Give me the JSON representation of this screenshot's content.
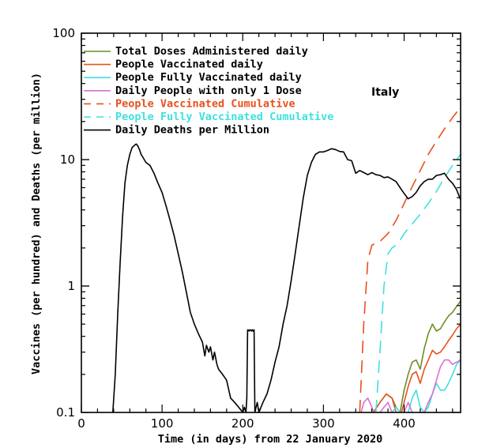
{
  "chart_data": {
    "type": "line",
    "title": "",
    "annotation": "Italy",
    "xlabel": "Time (in days) from 22 January 2020",
    "ylabel": "Vaccines (per hundred) and Deaths (per million)",
    "xlim": [
      0,
      470
    ],
    "ylim": [
      0.1,
      100
    ],
    "yscale": "log",
    "x_ticks": [
      0,
      100,
      200,
      300,
      400
    ],
    "x_tick_labels": [
      "0",
      "100",
      "200",
      "300",
      "400"
    ],
    "y_ticks": [
      0.1,
      1,
      10,
      100
    ],
    "y_tick_labels": [
      "0.1",
      "1",
      "10",
      "100"
    ],
    "series": [
      {
        "name": "Total Doses Administered daily",
        "color": "#6b8e23",
        "dash": "solid",
        "x": [
          345,
          355,
          362,
          370,
          378,
          385,
          390,
          395,
          400,
          405,
          410,
          415,
          420,
          425,
          430,
          435,
          440,
          445,
          450,
          455,
          460,
          465,
          470
        ],
        "y": [
          0.09,
          0.095,
          0.1,
          0.12,
          0.14,
          0.13,
          0.11,
          0.1,
          0.15,
          0.2,
          0.25,
          0.26,
          0.22,
          0.32,
          0.42,
          0.5,
          0.44,
          0.46,
          0.52,
          0.58,
          0.62,
          0.69,
          0.76
        ]
      },
      {
        "name": "People Vaccinated daily",
        "color": "#e8501e",
        "dash": "solid",
        "x": [
          345,
          355,
          362,
          370,
          378,
          385,
          390,
          395,
          400,
          405,
          410,
          415,
          420,
          425,
          430,
          435,
          440,
          445,
          450,
          455,
          460,
          465,
          470
        ],
        "y": [
          0.09,
          0.095,
          0.1,
          0.12,
          0.14,
          0.13,
          0.1,
          0.09,
          0.12,
          0.16,
          0.2,
          0.21,
          0.17,
          0.22,
          0.26,
          0.31,
          0.29,
          0.3,
          0.33,
          0.37,
          0.41,
          0.46,
          0.5
        ]
      },
      {
        "name": "People Fully Vaccinated daily",
        "color": "#40e0e0",
        "dash": "solid",
        "x": [
          380,
          385,
          390,
          395,
          400,
          405,
          410,
          415,
          420,
          425,
          430,
          435,
          440,
          445,
          450,
          455,
          460,
          465,
          470
        ],
        "y": [
          0.09,
          0.1,
          0.11,
          0.1,
          0.09,
          0.1,
          0.13,
          0.15,
          0.11,
          0.1,
          0.11,
          0.14,
          0.17,
          0.15,
          0.15,
          0.17,
          0.2,
          0.24,
          0.26
        ]
      },
      {
        "name": "Daily People with only 1 Dose",
        "color": "#da70d6",
        "dash": "solid",
        "x": [
          345,
          350,
          355,
          360,
          365,
          370,
          375,
          380,
          385,
          390,
          395,
          400,
          405,
          410,
          415,
          420,
          425,
          430,
          435,
          440,
          445,
          450,
          455,
          460,
          465,
          470
        ],
        "y": [
          0.09,
          0.12,
          0.13,
          0.11,
          0.09,
          0.1,
          0.11,
          0.12,
          0.1,
          0.09,
          0.08,
          0.1,
          0.12,
          0.1,
          0.09,
          0.08,
          0.1,
          0.12,
          0.14,
          0.18,
          0.23,
          0.26,
          0.26,
          0.24,
          0.25,
          0.26
        ]
      },
      {
        "name": "People Vaccinated Cumulative",
        "color": "#e8501e",
        "dash": "dashed",
        "x": [
          345,
          350,
          355,
          360,
          365,
          370,
          380,
          390,
          400,
          410,
          420,
          430,
          440,
          450,
          460,
          470
        ],
        "y": [
          0.1,
          0.5,
          1.6,
          2.1,
          2.2,
          2.25,
          2.6,
          3.3,
          4.5,
          6.1,
          8.2,
          11,
          14,
          17.5,
          21.5,
          26
        ]
      },
      {
        "name": "People Fully Vaccinated Cumulative",
        "color": "#40e0e0",
        "dash": "dashed",
        "x": [
          365,
          370,
          375,
          380,
          385,
          390,
          395,
          400,
          410,
          420,
          430,
          440,
          450,
          460,
          470
        ],
        "y": [
          0.1,
          0.3,
          1.0,
          1.8,
          2.0,
          2.1,
          2.3,
          2.6,
          3.1,
          3.7,
          4.5,
          5.6,
          7.2,
          9.0,
          11
        ]
      },
      {
        "name": "Daily Deaths per Million",
        "color": "#000000",
        "dash": "solid",
        "x": [
          39,
          42,
          45,
          48,
          51,
          54,
          57,
          60,
          63,
          66,
          68,
          70,
          72,
          74,
          76,
          80,
          85,
          90,
          95,
          100,
          105,
          110,
          115,
          120,
          125,
          130,
          135,
          140,
          145,
          150,
          153,
          155,
          158,
          160,
          163,
          165,
          168,
          170,
          175,
          180,
          185,
          190,
          195,
          200,
          202,
          204,
          205,
          206,
          207,
          208,
          209,
          210,
          211,
          212,
          213,
          214,
          215,
          218,
          220,
          225,
          230,
          235,
          240,
          245,
          250,
          255,
          260,
          265,
          270,
          275,
          280,
          285,
          290,
          295,
          300,
          305,
          310,
          315,
          320,
          325,
          330,
          335,
          340,
          345,
          350,
          355,
          360,
          365,
          370,
          375,
          380,
          385,
          390,
          395,
          400,
          405,
          410,
          415,
          420,
          425,
          430,
          435,
          440,
          445,
          450,
          455,
          460,
          465,
          470
        ],
        "y": [
          0.1,
          0.2,
          0.6,
          1.5,
          3.5,
          6.5,
          9,
          11,
          12.5,
          13,
          13.3,
          12.8,
          12,
          11,
          10.5,
          9.5,
          9,
          7.8,
          6.5,
          5.5,
          4.3,
          3.3,
          2.5,
          1.8,
          1.3,
          0.9,
          0.62,
          0.5,
          0.42,
          0.36,
          0.28,
          0.34,
          0.3,
          0.33,
          0.26,
          0.3,
          0.24,
          0.22,
          0.2,
          0.18,
          0.13,
          0.12,
          0.11,
          0.1,
          0.11,
          0.1,
          0.13,
          0.45,
          0.45,
          0.44,
          0.45,
          0.45,
          0.44,
          0.45,
          0.44,
          0.45,
          0.1,
          0.12,
          0.1,
          0.12,
          0.14,
          0.18,
          0.25,
          0.33,
          0.5,
          0.7,
          1.1,
          1.8,
          3.0,
          5.0,
          7.5,
          9.5,
          11,
          11.5,
          11.5,
          11.8,
          12.2,
          12,
          11.6,
          11.5,
          10,
          9.8,
          7.8,
          8.2,
          7.9,
          7.6,
          7.9,
          7.6,
          7.5,
          7.2,
          7.3,
          7.0,
          6.7,
          6.0,
          5.4,
          4.9,
          5.1,
          5.5,
          6.2,
          6.7,
          7.0,
          7.0,
          7.5,
          7.6,
          7.8,
          7.0,
          6.5,
          5.8,
          4.8
        ]
      }
    ],
    "legend": {
      "placement": "top-left",
      "entries": [
        {
          "label": "Total Doses Administered daily",
          "color": "#6b8e23",
          "dash": "solid",
          "text_color": "#000000"
        },
        {
          "label": "People Vaccinated daily",
          "color": "#e8501e",
          "dash": "solid",
          "text_color": "#000000"
        },
        {
          "label": "People Fully Vaccinated daily",
          "color": "#40e0e0",
          "dash": "solid",
          "text_color": "#000000"
        },
        {
          "label": "Daily People with only 1 Dose",
          "color": "#da70d6",
          "dash": "solid",
          "text_color": "#000000"
        },
        {
          "label": "People Vaccinated Cumulative",
          "color": "#e8501e",
          "dash": "dashed",
          "text_color": "#e8501e"
        },
        {
          "label": "People Fully Vaccinated Cumulative",
          "color": "#40e0e0",
          "dash": "dashed",
          "text_color": "#40e0e0"
        },
        {
          "label": "Daily Deaths per Million",
          "color": "#000000",
          "dash": "solid",
          "text_color": "#000000"
        }
      ]
    }
  }
}
